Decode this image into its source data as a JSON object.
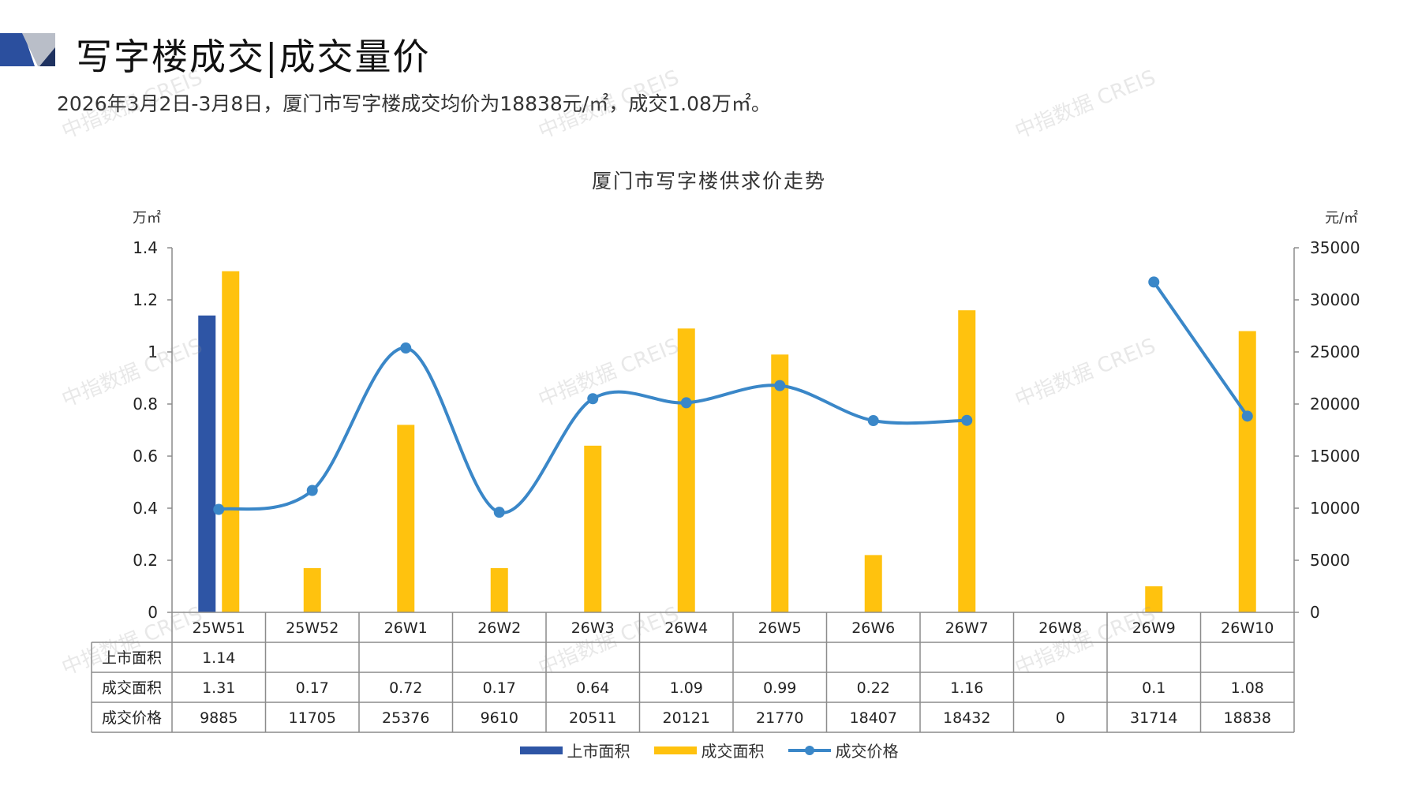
{
  "page": {
    "title": "写字楼成交|成交量价",
    "subtitle": "2026年3月2日-3月8日，厦门市写字楼成交均价为18838元/㎡，成交1.08万㎡。",
    "watermark": "中指数据 CREIS"
  },
  "colors": {
    "listed_area": "#2e55a5",
    "transaction_area": "#ffc20e",
    "transaction_price": "#3a87c8",
    "header_dark": "#2b4f9e",
    "header_gray": "#b9bec8"
  },
  "chart_data": {
    "type": "bar",
    "title": "厦门市写字楼供求价走势",
    "y_left_unit": "万㎡",
    "y_right_unit": "元/㎡",
    "ylim_left": [
      0,
      1.4
    ],
    "ylim_right": [
      0,
      35000
    ],
    "y_left_ticks": [
      "0",
      "0.2",
      "0.4",
      "0.6",
      "0.8",
      "1",
      "1.2",
      "1.4"
    ],
    "y_right_ticks": [
      "0",
      "5000",
      "10000",
      "15000",
      "20000",
      "25000",
      "30000",
      "35000"
    ],
    "categories": [
      "25W51",
      "25W52",
      "26W1",
      "26W2",
      "26W3",
      "26W4",
      "26W5",
      "26W6",
      "26W7",
      "26W8",
      "26W9",
      "26W10"
    ],
    "series": [
      {
        "name": "上市面积",
        "type": "bar",
        "axis": "left",
        "values": [
          1.14,
          null,
          null,
          null,
          null,
          null,
          null,
          null,
          null,
          null,
          null,
          null
        ],
        "labels": [
          "1.14",
          "",
          "",
          "",
          "",
          "",
          "",
          "",
          "",
          "",
          "",
          ""
        ]
      },
      {
        "name": "成交面积",
        "type": "bar",
        "axis": "left",
        "values": [
          1.31,
          0.17,
          0.72,
          0.17,
          0.64,
          1.09,
          0.99,
          0.22,
          1.16,
          null,
          0.1,
          1.08
        ],
        "labels": [
          "1.31",
          "0.17",
          "0.72",
          "0.17",
          "0.64",
          "1.09",
          "0.99",
          "0.22",
          "1.16",
          "",
          "0.1",
          "1.08"
        ]
      },
      {
        "name": "成交价格",
        "type": "line",
        "axis": "right",
        "values": [
          9885,
          11705,
          25376,
          9610,
          20511,
          20121,
          21770,
          18407,
          18432,
          0,
          31714,
          18838
        ],
        "labels": [
          "9885",
          "11705",
          "25376",
          "9610",
          "20511",
          "20121",
          "21770",
          "18407",
          "18432",
          "0",
          "31714",
          "18838"
        ]
      }
    ],
    "legend_position": "bottom"
  }
}
